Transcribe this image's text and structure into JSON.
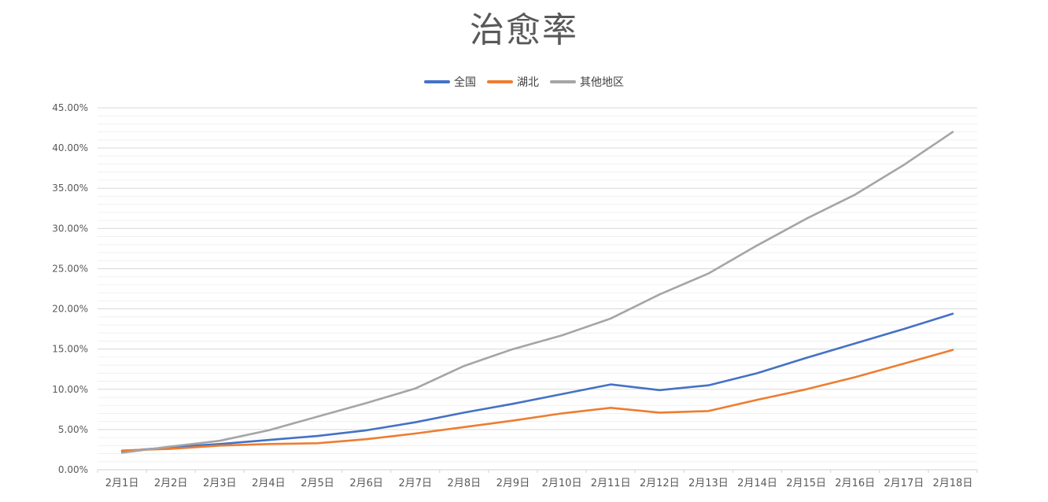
{
  "chart_data": {
    "type": "line",
    "title": "治愈率",
    "categories": [
      "2月1日",
      "2月2日",
      "2月3日",
      "2月4日",
      "2月5日",
      "2月6日",
      "2月7日",
      "2月8日",
      "2月9日",
      "2月10日",
      "2月11日",
      "2月12日",
      "2月13日",
      "2月14日",
      "2月15日",
      "2月16日",
      "2月17日",
      "2月18日"
    ],
    "series": [
      {
        "name": "全国",
        "color": "#4472C4",
        "values": [
          2.3,
          2.8,
          3.2,
          3.7,
          4.2,
          4.9,
          5.9,
          7.1,
          8.2,
          9.4,
          10.6,
          9.9,
          10.5,
          12.0,
          13.9,
          15.7,
          17.5,
          19.4
        ]
      },
      {
        "name": "湖北",
        "color": "#ED7D31",
        "values": [
          2.4,
          2.6,
          3.0,
          3.2,
          3.3,
          3.8,
          4.5,
          5.3,
          6.1,
          7.0,
          7.7,
          7.1,
          7.3,
          8.7,
          10.0,
          11.5,
          13.2,
          14.9
        ]
      },
      {
        "name": "其他地区",
        "color": "#A5A5A5",
        "values": [
          2.1,
          2.9,
          3.6,
          4.9,
          6.6,
          8.3,
          10.1,
          12.9,
          15.0,
          16.7,
          18.8,
          21.8,
          24.4,
          27.9,
          31.2,
          34.2,
          37.9,
          42.0
        ]
      }
    ],
    "ylim": [
      0,
      45
    ],
    "y_major_unit": 5,
    "y_minor_unit": 1,
    "y_tick_labels": [
      "0.00%",
      "5.00%",
      "10.00%",
      "15.00%",
      "20.00%",
      "25.00%",
      "30.00%",
      "35.00%",
      "40.00%",
      "45.00%"
    ],
    "grid": "horizontal major+minor",
    "legend_position": "top",
    "colors": {
      "major_gridline": "#D9D9D9",
      "minor_gridline": "#F0F0F0",
      "axis_line": "#D9D9D9",
      "tick_label": "#595959",
      "title_text": "#595959"
    }
  }
}
